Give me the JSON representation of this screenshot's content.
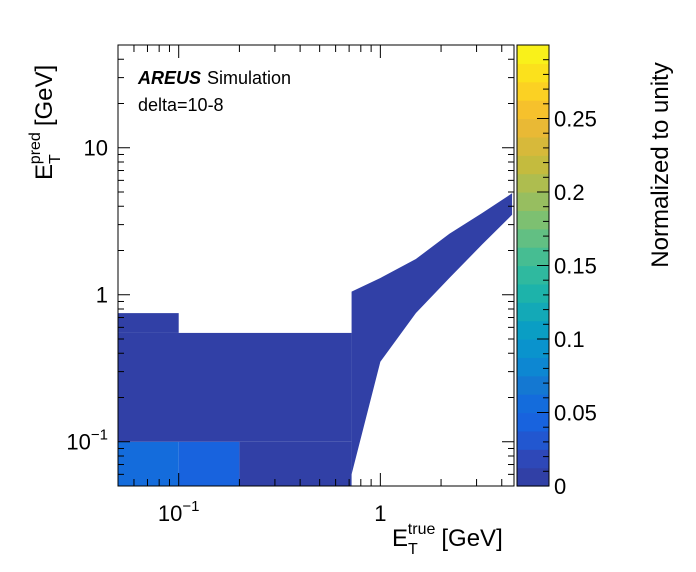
{
  "chart_data": {
    "type": "heatmap",
    "annotation": {
      "brand": "AREUS",
      "subtitle": "Simulation",
      "line2": "delta=10-8"
    },
    "xlabel": {
      "main": "E",
      "sub": "T",
      "sup": "true",
      "unit": "[GeV]"
    },
    "ylabel": {
      "main": "E",
      "sub": "T",
      "sup": "pred",
      "unit": "[GeV]"
    },
    "x_scale": "log",
    "y_scale": "log",
    "xlim": [
      0.05,
      4.6
    ],
    "ylim": [
      0.05,
      50
    ],
    "x_ticks": [
      {
        "value": 0.1,
        "base": "10",
        "exp": "−1"
      },
      {
        "value": 1,
        "label": "1"
      }
    ],
    "y_ticks": [
      {
        "value": 0.1,
        "base": "10",
        "exp": "−1"
      },
      {
        "value": 1,
        "label": "1"
      },
      {
        "value": 10,
        "label": "10"
      }
    ],
    "z_label": "Normalized to unity",
    "zlim": [
      0,
      0.3
    ],
    "z_ticks": [
      "0",
      "0.05",
      "0.1",
      "0.15",
      "0.2",
      "0.25"
    ],
    "z_tick_values": [
      0,
      0.05,
      0.1,
      0.15,
      0.2,
      0.25
    ],
    "palette": [
      "#3140a6",
      "#2e48b8",
      "#2257d0",
      "#1863de",
      "#146cdc",
      "#1478d2",
      "#0d87d2",
      "#0a93cd",
      "#0a9ec4",
      "#13a9b7",
      "#1db3aa",
      "#2fb99f",
      "#46bd92",
      "#62bf83",
      "#7dc071",
      "#97be60",
      "#aebd4f",
      "#c4bb3e",
      "#d7b93a",
      "#e9b935",
      "#f6c12c",
      "#fbd123",
      "#fbe11c",
      "#f9f11a"
    ],
    "cells": [
      {
        "x": [
          0.05,
          0.1
        ],
        "y": [
          0.05,
          0.1
        ],
        "z": 0.05
      },
      {
        "x": [
          0.1,
          0.2
        ],
        "y": [
          0.05,
          0.1
        ],
        "z": 0.04
      },
      {
        "x": [
          0.05,
          0.72
        ],
        "y": [
          0.1,
          0.55
        ],
        "z": 0.01
      },
      {
        "x": [
          0.2,
          0.72
        ],
        "y": [
          0.05,
          0.1
        ],
        "z": 0.01
      },
      {
        "x": [
          0.05,
          0.1
        ],
        "y": [
          0.55,
          0.75
        ],
        "z": 0.01
      }
    ],
    "band": [
      {
        "x": 0.72,
        "ylo": 0.06,
        "yhi": 1.05
      },
      {
        "x": 1.0,
        "ylo": 0.35,
        "yhi": 1.3
      },
      {
        "x": 1.5,
        "ylo": 0.75,
        "yhi": 1.75
      },
      {
        "x": 2.2,
        "ylo": 1.3,
        "yhi": 2.6
      },
      {
        "x": 3.2,
        "ylo": 2.2,
        "yhi": 3.6
      },
      {
        "x": 4.5,
        "ylo": 3.5,
        "yhi": 4.9
      }
    ]
  }
}
